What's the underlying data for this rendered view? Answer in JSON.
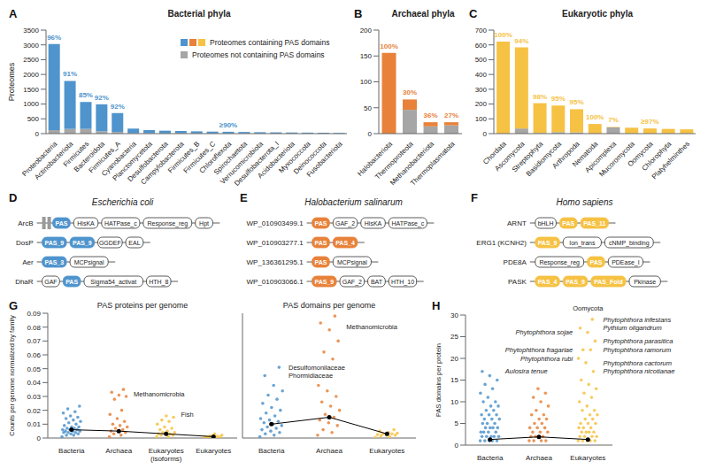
{
  "chart_data": [
    {
      "panel": "A",
      "type": "bar",
      "title": "Bacterial phyla",
      "ylabel": "Proteomes",
      "stacked": true,
      "legend": "top-right",
      "categories": [
        "Proteobacteria",
        "Actinobacteriota",
        "Firmicutes",
        "Bacteroidota",
        "Firmicutes_A",
        "Cyanobacteria",
        "Planctomycetota",
        "Desulfobacterota",
        "Campylobacterota",
        "Firmicutes_B",
        "Firmicutes_C",
        "Chloroflexota",
        "Spirochaetota",
        "Verrucomicrobiota",
        "Desulfobacterota_I",
        "Acidobacteriota",
        "Myxococcota",
        "Deinococcota",
        "Fusobacteriota"
      ],
      "series": [
        {
          "name": "Proteomes containing PAS domains",
          "color": "#4f94cd",
          "values": [
            2910,
            1620,
            910,
            910,
            640,
            160,
            110,
            95,
            80,
            72,
            62,
            58,
            50,
            45,
            40,
            36,
            32,
            28,
            22
          ]
        },
        {
          "name": "Proteomes not containing PAS domains",
          "color": "#a6a6a6",
          "values": [
            120,
            160,
            160,
            80,
            55,
            10,
            10,
            5,
            10,
            6,
            6,
            5,
            6,
            4,
            3,
            2,
            2,
            1,
            2
          ]
        }
      ],
      "ylim": [
        0,
        3500
      ],
      "yticks": [
        0,
        500,
        1000,
        1500,
        2000,
        2500,
        3000,
        3500
      ],
      "annotations": [
        {
          "category": "Proteobacteria",
          "text": "96%"
        },
        {
          "category": "Actinobacteriota",
          "text": "91%"
        },
        {
          "category": "Firmicutes",
          "text": "85%"
        },
        {
          "category": "Bacteroidota",
          "text": "92%"
        },
        {
          "category": "Firmicutes_A",
          "text": "92%"
        },
        {
          "category": "Chloroflexota",
          "text": "≥90%"
        }
      ]
    },
    {
      "panel": "B",
      "type": "bar",
      "title": "Archaeal phyla",
      "stacked": true,
      "categories": [
        "Halobacteriota",
        "Thermoproteota",
        "Methanobacteriota",
        "Thermoplasmatota"
      ],
      "series": [
        {
          "name": "Proteomes containing PAS domains",
          "color": "#e8823a",
          "values": [
            156,
            20,
            8,
            6
          ]
        },
        {
          "name": "Proteomes not containing PAS domains",
          "color": "#a6a6a6",
          "values": [
            0,
            46,
            14,
            16
          ]
        }
      ],
      "ylim": [
        0,
        200
      ],
      "yticks": [
        0,
        50,
        100,
        150,
        200
      ],
      "annotations": [
        {
          "category": "Halobacteriota",
          "text": "100%"
        },
        {
          "category": "Thermoproteota",
          "text": "30%"
        },
        {
          "category": "Methanobacteriota",
          "text": "36%"
        },
        {
          "category": "Thermoplasmatota",
          "text": "27%"
        }
      ]
    },
    {
      "panel": "C",
      "type": "bar",
      "title": "Eukaryotic phyla",
      "stacked": true,
      "categories": [
        "Chordata",
        "Ascomycota",
        "Streptophyta",
        "Basidiomycota",
        "Arthropoda",
        "Nematoda",
        "Apicomplexa",
        "Mucoromycota",
        "Oomycota",
        "Chlorophyta",
        "Platyhelminthes"
      ],
      "series": [
        {
          "name": "Proteomes containing PAS domains",
          "color": "#f6c244",
          "values": [
            622,
            548,
            202,
            180,
            157,
            65,
            3,
            39,
            35,
            31,
            28
          ]
        },
        {
          "name": "Proteomes not containing PAS domains",
          "color": "#a6a6a6",
          "values": [
            0,
            35,
            4,
            10,
            8,
            0,
            42,
            1,
            0,
            1,
            1
          ]
        }
      ],
      "ylim": [
        0,
        700
      ],
      "yticks": [
        0,
        100,
        200,
        300,
        400,
        500,
        600,
        700
      ],
      "annotations": [
        {
          "category": "Chordata",
          "text": "100%"
        },
        {
          "category": "Ascomycota",
          "text": "94%"
        },
        {
          "category": "Streptophyta",
          "text": "98%"
        },
        {
          "category": "Basidiomycota",
          "text": "95%"
        },
        {
          "category": "Arthropoda",
          "text": "95%"
        },
        {
          "category": "Nematoda",
          "text": "100%"
        },
        {
          "category": "Apicomplexa",
          "text": "7%"
        },
        {
          "category": "Oomycota",
          "text": "≥97%"
        }
      ]
    },
    {
      "panel": "G",
      "type": "scatter",
      "ylabel": "Counts per genome normalized by family",
      "ylim": [
        0,
        0.09
      ],
      "yticks": [
        0,
        0.01,
        0.02,
        0.03,
        0.04,
        0.05,
        0.06,
        0.07,
        0.08,
        0.09
      ],
      "subplots": [
        {
          "title": "PAS proteins per genome",
          "categories": [
            "Bacteria",
            "Archaea",
            "Eukaryotes (isoforms)",
            "Eukaryotes"
          ],
          "colors": [
            "#4f94cd",
            "#e8823a",
            "#f6c244",
            "#f6c244"
          ],
          "points": [
            [
              0.001,
              0.002,
              0.002,
              0.003,
              0.003,
              0.004,
              0.004,
              0.004,
              0.005,
              0.005,
              0.005,
              0.006,
              0.006,
              0.006,
              0.007,
              0.007,
              0.008,
              0.008,
              0.009,
              0.01,
              0.011,
              0.012,
              0.013,
              0.014,
              0.015,
              0.016,
              0.018,
              0.019,
              0.021,
              0.023
            ],
            [
              0.001,
              0.002,
              0.003,
              0.004,
              0.005,
              0.005,
              0.006,
              0.007,
              0.008,
              0.009,
              0.01,
              0.012,
              0.014,
              0.017,
              0.02,
              0.028,
              0.03,
              0.031,
              0.033,
              0.035
            ],
            [
              0.001,
              0.001,
              0.002,
              0.002,
              0.003,
              0.003,
              0.003,
              0.004,
              0.004,
              0.005,
              0.006,
              0.007,
              0.008,
              0.01,
              0.012,
              0.013,
              0.015,
              0.016
            ],
            [
              0.0002,
              0.0004,
              0.0006,
              0.0008,
              0.001,
              0.001,
              0.0012,
              0.0015,
              0.002,
              0.003
            ]
          ],
          "medians": [
            0.006,
            0.005,
            0.003,
            0.001
          ],
          "annotations": [
            {
              "category": "Archaea",
              "value": 0.032,
              "text": "Methanomicrobia"
            },
            {
              "category": "Eukaryotes (isoforms)",
              "value": 0.017,
              "text": "Fish"
            }
          ]
        },
        {
          "title": "PAS domains per genome",
          "categories": [
            "Bacteria",
            "Archaea",
            "Eukaryotes"
          ],
          "colors": [
            "#4f94cd",
            "#e8823a",
            "#f6c244"
          ],
          "points": [
            [
              0.001,
              0.002,
              0.003,
              0.004,
              0.005,
              0.006,
              0.007,
              0.008,
              0.009,
              0.01,
              0.011,
              0.012,
              0.013,
              0.014,
              0.016,
              0.018,
              0.02,
              0.022,
              0.025,
              0.028,
              0.031,
              0.034,
              0.038,
              0.045,
              0.051
            ],
            [
              0.002,
              0.004,
              0.006,
              0.009,
              0.011,
              0.013,
              0.015,
              0.017,
              0.02,
              0.023,
              0.026,
              0.03,
              0.034,
              0.038,
              0.057,
              0.062,
              0.07,
              0.078,
              0.083,
              0.088
            ],
            [
              0.0005,
              0.001,
              0.0015,
              0.002,
              0.002,
              0.0025,
              0.003,
              0.003,
              0.0035,
              0.004,
              0.005,
              0.006
            ]
          ],
          "medians": [
            0.01,
            0.015,
            0.003
          ],
          "annotations": [
            {
              "category": "Bacteria",
              "value": 0.051,
              "text": "Desulfomonilaceae"
            },
            {
              "category": "Bacteria",
              "value": 0.045,
              "text": "Phormidiaceae"
            },
            {
              "category": "Archaea",
              "value": 0.08,
              "text": "Methanomicrobia"
            }
          ]
        }
      ]
    },
    {
      "panel": "H",
      "type": "scatter",
      "ylabel": "PAS domains per protein",
      "ylim": [
        0,
        30
      ],
      "yticks": [
        0,
        5,
        10,
        15,
        20,
        25,
        30
      ],
      "categories": [
        "Bacteria",
        "Archaea",
        "Eukaryotes"
      ],
      "colors": [
        "#4f94cd",
        "#e8823a",
        "#f6c244"
      ],
      "points": [
        [
          1,
          1,
          1,
          1,
          1,
          2,
          2,
          2,
          2,
          2,
          3,
          3,
          3,
          3,
          4,
          4,
          4,
          4,
          5,
          5,
          5,
          6,
          6,
          6,
          7,
          7,
          7,
          8,
          8,
          9,
          9,
          10,
          10,
          11,
          12,
          13,
          14,
          15,
          16,
          17
        ],
        [
          1,
          1,
          1,
          1,
          2,
          2,
          2,
          2,
          3,
          3,
          3,
          4,
          4,
          4,
          5,
          5,
          6,
          6,
          7,
          7,
          8,
          9,
          10,
          11,
          12,
          13
        ],
        [
          1,
          1,
          1,
          1,
          1,
          2,
          2,
          2,
          2,
          3,
          3,
          3,
          3,
          4,
          4,
          4,
          5,
          5,
          5,
          6,
          6,
          7,
          7,
          8,
          8,
          9,
          10,
          11,
          12,
          13,
          14,
          15,
          17,
          19,
          20,
          22,
          22,
          24,
          26,
          27,
          29
        ]
      ],
      "medians": [
        1.3,
        1.9,
        1.3
      ],
      "annotations": [
        {
          "category": "Eukaryotes",
          "text": "Oomycota"
        },
        {
          "category": "Eukaryotes",
          "value": 26,
          "text": "Phytophthora sojae"
        },
        {
          "category": "Eukaryotes",
          "value": 22,
          "text": "Phytophthora fragariae"
        },
        {
          "category": "Eukaryotes",
          "value": 20,
          "text": "Phytophthora rubi"
        },
        {
          "category": "Bacteria",
          "value": 17,
          "text": "Aulosira tenue"
        },
        {
          "category": "Eukaryotes",
          "value": 29,
          "text": "Phytophthora infestans"
        },
        {
          "category": "Eukaryotes",
          "value": 27,
          "text": "Pythium oligandrum"
        },
        {
          "category": "Eukaryotes",
          "value": 24,
          "text": "Phytophthora parasitica"
        },
        {
          "category": "Eukaryotes",
          "value": 22,
          "text": "Phytophthora ramorum"
        },
        {
          "category": "Eukaryotes",
          "value": 19,
          "text": "Phytophthora cactorum"
        },
        {
          "category": "Eukaryotes",
          "value": 17,
          "text": "Phytophthora nicotianae"
        }
      ]
    }
  ],
  "domain_architectures": [
    {
      "panel": "D",
      "title": "Escherichia coli",
      "color": "#4f94cd",
      "proteins": [
        {
          "name": "ArcB",
          "domains": [
            null,
            null,
            "PAS",
            "HisKA",
            "HATPase_c",
            "Response_reg",
            "Hpt"
          ]
        },
        {
          "name": "DosP",
          "domains": [
            "PAS_9",
            "PAS_9",
            "GGDEF",
            "EAL"
          ]
        },
        {
          "name": "Aer",
          "domains": [
            "PAS_3",
            "MCPsignal"
          ]
        },
        {
          "name": "DhaR",
          "domains": [
            "GAF",
            "PAS",
            "Sigma54_activat",
            "HTH_8"
          ]
        }
      ]
    },
    {
      "panel": "E",
      "title": "Halobacterium salinarum",
      "color": "#e8823a",
      "proteins": [
        {
          "name": "WP_010903499.1",
          "domains": [
            "PAS",
            "GAF_2",
            "HisKA",
            "HATPase_c"
          ]
        },
        {
          "name": "WP_010903277.1",
          "domains": [
            "PAS",
            "PAS_4"
          ]
        },
        {
          "name": "WP_136361295.1",
          "domains": [
            "PAS",
            "MCPsignal"
          ]
        },
        {
          "name": "WP_010903066.1",
          "domains": [
            "PAS_9",
            "GAF_2",
            "BAT",
            "HTH_10"
          ]
        }
      ]
    },
    {
      "panel": "F",
      "title": "Homo sapiens",
      "color": "#f6c244",
      "proteins": [
        {
          "name": "ARNT",
          "domains": [
            "bHLH",
            "PAS",
            "PAS_11"
          ]
        },
        {
          "name": "ERG1 (KCNH2)",
          "domains": [
            "PAS_9",
            "Ion_trans",
            "cNMP_binding"
          ]
        },
        {
          "name": "PDE8A",
          "domains": [
            "Response_reg",
            "PAS",
            "PDEase_I"
          ]
        },
        {
          "name": "PASK",
          "domains": [
            "PAS_4",
            "PAS_9",
            "PAS_Fold",
            "Pkinase"
          ]
        }
      ]
    }
  ]
}
